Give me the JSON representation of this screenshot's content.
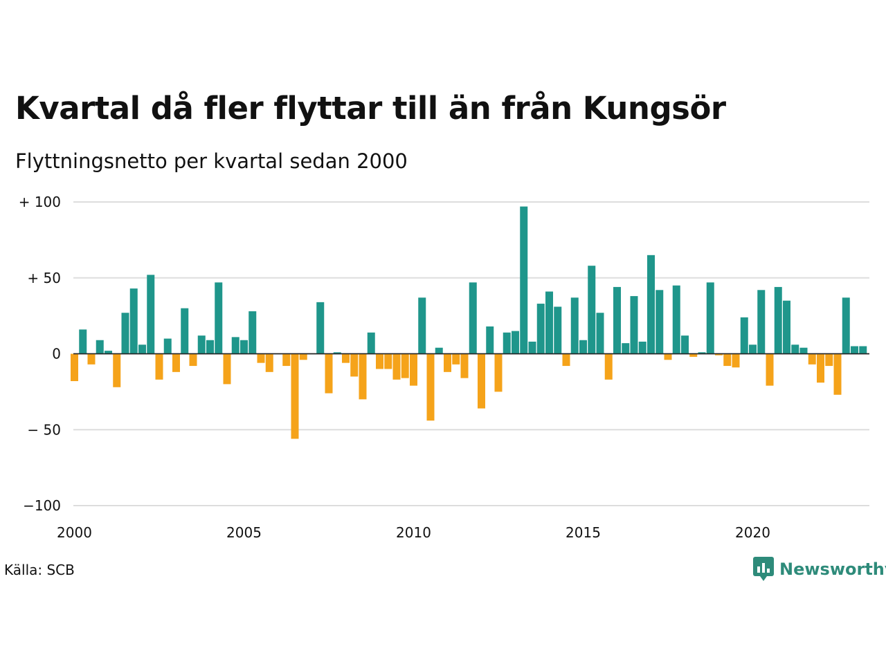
{
  "title": "Kvartal då fler flyttar till än från Kungsör",
  "subtitle": "Flyttningsnetto per kvartal sedan 2000",
  "source": "Källa: SCB",
  "brand": "Newsworthy",
  "colors": {
    "positive": "#1f968b",
    "negative": "#f5a31a",
    "grid": "#dddddd",
    "brand": "#2e8b7a"
  },
  "icons": {
    "brand_logo": "newsworthy-logo-icon"
  },
  "chart_data": {
    "type": "bar",
    "ylim": [
      -100,
      100
    ],
    "grid": true,
    "yticks": [
      {
        "value": 100,
        "label": "+ 100"
      },
      {
        "value": 50,
        "label": "+  50"
      },
      {
        "value": 0,
        "label": "0"
      },
      {
        "value": -50,
        "label": "− 50"
      },
      {
        "value": -100,
        "label": "−100"
      }
    ],
    "xticks": [
      {
        "value": 2000,
        "label": "2000"
      },
      {
        "value": 2005,
        "label": "2005"
      },
      {
        "value": 2010,
        "label": "2010"
      },
      {
        "value": 2015,
        "label": "2015"
      },
      {
        "value": 2020,
        "label": "2020"
      }
    ],
    "start_year": 2000,
    "values": [
      -18,
      16,
      -7,
      9,
      2,
      -22,
      27,
      43,
      6,
      52,
      -17,
      10,
      -12,
      30,
      -8,
      12,
      9,
      47,
      -20,
      11,
      9,
      28,
      -6,
      -12,
      0,
      -8,
      -56,
      -4,
      0,
      34,
      -26,
      1,
      -6,
      -15,
      -30,
      14,
      -10,
      -10,
      -17,
      -16,
      -21,
      37,
      -44,
      4,
      -12,
      -7,
      -16,
      47,
      -36,
      18,
      -25,
      14,
      15,
      97,
      8,
      33,
      41,
      31,
      -8,
      37,
      9,
      58,
      27,
      -17,
      44,
      7,
      38,
      8,
      65,
      42,
      -4,
      45,
      12,
      -2,
      1,
      47,
      -1,
      -8,
      -9,
      24,
      6,
      42,
      -21,
      44,
      35,
      6,
      4,
      -7,
      -19,
      -8,
      -27,
      37,
      5,
      5
    ]
  }
}
